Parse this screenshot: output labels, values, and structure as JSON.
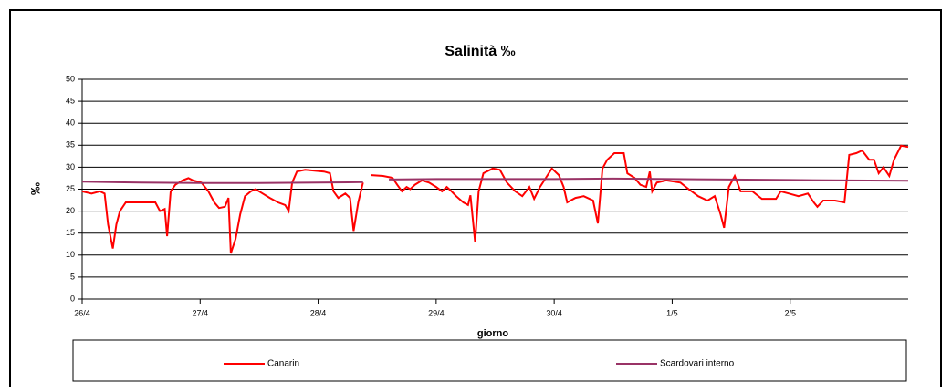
{
  "chart_data": {
    "type": "line",
    "title": "Salinità ‰",
    "x_label": "giorno",
    "y_label": "‰",
    "xlim": [
      0,
      7
    ],
    "xticks": [
      {
        "value": 0,
        "label": "26/4"
      },
      {
        "value": 1,
        "label": "27/4"
      },
      {
        "value": 2,
        "label": "28/4"
      },
      {
        "value": 3,
        "label": "29/4"
      },
      {
        "value": 4,
        "label": "30/4"
      },
      {
        "value": 5,
        "label": "1/5"
      },
      {
        "value": 6,
        "label": "2/5"
      }
    ],
    "ylim": [
      0,
      50
    ],
    "yticks": [
      0,
      5,
      10,
      15,
      20,
      25,
      30,
      35,
      40,
      45,
      50
    ],
    "grid": true,
    "series": [
      {
        "name": "Canarin",
        "color": "#ff0000",
        "x": [
          0,
          0.08,
          0.15,
          0.19,
          0.22,
          0.26,
          0.29,
          0.32,
          0.37,
          0.46,
          0.54,
          0.62,
          0.66,
          0.7,
          0.72,
          0.75,
          0.79,
          0.85,
          0.9,
          0.94,
          1.01,
          1.07,
          1.12,
          1.16,
          1.21,
          1.24,
          1.26,
          1.3,
          1.34,
          1.38,
          1.43,
          1.47,
          1.53,
          1.59,
          1.66,
          1.72,
          1.75,
          1.78,
          1.82,
          1.89,
          1.97,
          2.05,
          2.1,
          2.13,
          2.17,
          2.23,
          2.27,
          2.3,
          2.34,
          2.38,
          2.42,
          2.45,
          2.55,
          2.63,
          2.67,
          2.71,
          2.75,
          2.78,
          2.82,
          2.88,
          2.94,
          3.0,
          3.05,
          3.09,
          3.13,
          3.17,
          3.23,
          3.27,
          3.29,
          3.33,
          3.36,
          3.4,
          3.48,
          3.54,
          3.6,
          3.67,
          3.73,
          3.79,
          3.83,
          3.88,
          3.93,
          3.98,
          4.04,
          4.08,
          4.11,
          4.18,
          4.25,
          4.33,
          4.37,
          4.41,
          4.45,
          4.51,
          4.59,
          4.62,
          4.68,
          4.73,
          4.78,
          4.81,
          4.83,
          4.87,
          4.95,
          5.07,
          5.14,
          5.22,
          5.3,
          5.36,
          5.41,
          5.44,
          5.48,
          5.53,
          5.58,
          5.68,
          5.76,
          5.88,
          5.92,
          5.99,
          6.07,
          6.15,
          6.2,
          6.23,
          6.28,
          6.38,
          6.46,
          6.5,
          6.56,
          6.61,
          6.67,
          6.71,
          6.75,
          6.79,
          6.84,
          6.88,
          6.94,
          7.0
        ],
        "values": [
          24.5,
          24,
          24.5,
          24,
          17,
          11.5,
          17,
          20,
          22,
          22,
          22,
          22,
          20,
          20.5,
          14.3,
          24.5,
          26,
          27,
          27.5,
          27,
          26.5,
          24.5,
          22,
          20.7,
          21,
          23,
          10.4,
          13.7,
          19.3,
          23.4,
          24.5,
          25,
          24,
          23,
          22,
          21.4,
          20,
          26.5,
          29,
          29.4,
          29.2,
          29,
          28.6,
          24.5,
          23,
          24,
          23,
          15.5,
          22,
          26.5,
          null,
          28.2,
          28,
          27.6,
          26,
          24.5,
          25.5,
          25,
          26,
          27,
          26.5,
          25.5,
          24.5,
          25.5,
          24.5,
          23.4,
          22,
          21.4,
          23.6,
          13,
          24.5,
          28.6,
          29.7,
          29.4,
          26.5,
          24.5,
          23.4,
          25.5,
          22.8,
          25.5,
          27.6,
          29.7,
          28.2,
          25.5,
          22,
          23,
          23.4,
          22.4,
          17.2,
          29.7,
          31.7,
          33.2,
          33.2,
          28.6,
          27.6,
          26,
          25.5,
          29,
          24.5,
          26.5,
          27,
          26.5,
          25,
          23.4,
          22.4,
          23.4,
          19.3,
          16.2,
          25.5,
          28,
          24.5,
          24.5,
          22.8,
          22.8,
          24.5,
          24,
          23.4,
          24,
          22,
          21,
          22.4,
          22.4,
          22,
          32.8,
          33.2,
          33.8,
          31.7,
          31.7,
          28.6,
          30,
          28,
          31.7,
          34.9,
          34.6
        ]
      },
      {
        "name": "Scardovari interno",
        "color": "#993366",
        "x": [
          0,
          0.5,
          1,
          1.5,
          2,
          2.38,
          2.45,
          2.6,
          3,
          3.5,
          4,
          4.5,
          5,
          5.5,
          6,
          6.5,
          7
        ],
        "values": [
          26.7,
          26.5,
          26.4,
          26.4,
          26.5,
          26.6,
          null,
          27.2,
          27.3,
          27.3,
          27.3,
          27.4,
          27.3,
          27.2,
          27.1,
          27,
          26.9
        ]
      }
    ]
  }
}
